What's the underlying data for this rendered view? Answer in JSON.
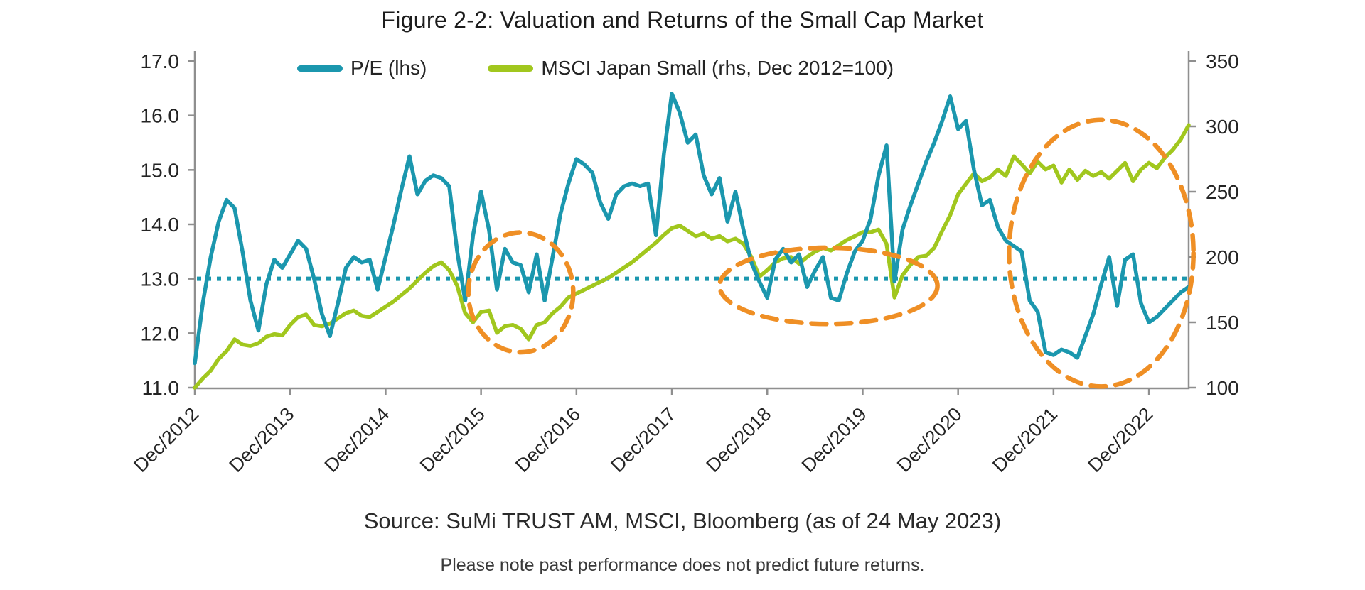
{
  "title": "Figure 2-2: Valuation and Returns of the Small Cap Market",
  "legend": {
    "items": [
      {
        "label": "P/E (lhs)",
        "color": "#1B97AE"
      },
      {
        "label": "MSCI Japan Small (rhs, Dec 2012=100)",
        "color": "#A1C71E"
      }
    ]
  },
  "source_line": "Source: SuMi TRUST AM, MSCI, Bloomberg (as of 24 May 2023)",
  "footnote": "Please note past performance does not predict future returns.",
  "chart_data": {
    "type": "line",
    "title": "Figure 2-2: Valuation and Returns of the Small Cap Market",
    "x_unit": "month",
    "x_start": "Dec 2012",
    "x_end": "May 2023",
    "x_tick_labels": [
      "Dec/2012",
      "Dec/2013",
      "Dec/2014",
      "Dec/2015",
      "Dec/2016",
      "Dec/2017",
      "Dec/2018",
      "Dec/2019",
      "Dec/2020",
      "Dec/2021",
      "Dec/2022"
    ],
    "gridlines": false,
    "legend_position": "top",
    "left_axis": {
      "name": "P/E",
      "range": [
        11.0,
        17.0
      ],
      "tick_labels": [
        "11.0",
        "12.0",
        "13.0",
        "14.0",
        "15.0",
        "16.0",
        "17.0"
      ]
    },
    "right_axis": {
      "name": "MSCI Japan Small (Dec 2012=100)",
      "range": [
        100,
        350
      ],
      "tick_labels": [
        "100",
        "150",
        "200",
        "250",
        "300",
        "350"
      ]
    },
    "reference_line": {
      "axis": "left",
      "value": 13.0,
      "style": "dotted",
      "color": "#1B97AE"
    },
    "series": [
      {
        "name": "P/E (lhs)",
        "axis": "left",
        "color": "#1B97AE",
        "values": [
          11.45,
          12.55,
          13.4,
          14.05,
          14.45,
          14.3,
          13.5,
          12.6,
          12.05,
          12.9,
          13.35,
          13.2,
          13.45,
          13.7,
          13.55,
          13.0,
          12.35,
          11.95,
          12.55,
          13.2,
          13.4,
          13.3,
          13.35,
          12.8,
          13.4,
          14.0,
          14.65,
          15.25,
          14.55,
          14.8,
          14.9,
          14.85,
          14.7,
          13.5,
          12.6,
          13.8,
          14.6,
          13.9,
          12.8,
          13.55,
          13.3,
          13.25,
          12.75,
          13.45,
          12.6,
          13.4,
          14.2,
          14.75,
          15.2,
          15.1,
          14.95,
          14.4,
          14.1,
          14.55,
          14.7,
          14.75,
          14.7,
          14.75,
          13.8,
          15.3,
          16.4,
          16.05,
          15.5,
          15.65,
          14.9,
          14.55,
          14.85,
          14.05,
          14.6,
          13.9,
          13.3,
          12.95,
          12.65,
          13.35,
          13.55,
          13.3,
          13.45,
          12.85,
          13.15,
          13.4,
          12.65,
          12.6,
          13.1,
          13.5,
          13.7,
          14.1,
          14.9,
          15.45,
          12.95,
          13.9,
          14.35,
          14.75,
          15.15,
          15.5,
          15.9,
          16.35,
          15.75,
          15.9,
          15.0,
          14.35,
          14.45,
          13.95,
          13.7,
          13.6,
          13.5,
          12.6,
          12.4,
          11.65,
          11.6,
          11.7,
          11.65,
          11.55,
          11.95,
          12.35,
          12.9,
          13.4,
          12.5,
          13.35,
          13.45,
          12.55,
          12.2,
          12.3,
          12.45,
          12.6,
          12.75,
          12.85
        ]
      },
      {
        "name": "MSCI Japan Small (rhs, Dec 2012=100)",
        "axis": "right",
        "color": "#A1C71E",
        "values": [
          100,
          107,
          113,
          122,
          128,
          137,
          133,
          132,
          134,
          139,
          141,
          140,
          148,
          154,
          156,
          148,
          147,
          149,
          153,
          157,
          159,
          155,
          154,
          158,
          162,
          166,
          171,
          176,
          182,
          188,
          193,
          196,
          190,
          178,
          157,
          150,
          158,
          159,
          142,
          147,
          148,
          145,
          137,
          148,
          150,
          157,
          162,
          169,
          172,
          175,
          178,
          181,
          184,
          188,
          192,
          196,
          201,
          206,
          211,
          217,
          222,
          224,
          220,
          216,
          218,
          214,
          216,
          212,
          214,
          210,
          200,
          185,
          190,
          196,
          199,
          200,
          195,
          200,
          204,
          207,
          205,
          209,
          213,
          216,
          219,
          219,
          221,
          210,
          169,
          186,
          194,
          200,
          201,
          207,
          220,
          232,
          248,
          256,
          264,
          258,
          261,
          267,
          262,
          277,
          271,
          264,
          273,
          267,
          270,
          257,
          267,
          259,
          266,
          262,
          265,
          260,
          266,
          272,
          258,
          267,
          272,
          268,
          276,
          282,
          290,
          301
        ]
      }
    ],
    "annotations": [
      {
        "shape": "dashed-ellipse",
        "color": "#EF8F25",
        "axis": "left",
        "center_month": 41.0,
        "center_value": 12.75,
        "radius_months": 6.6,
        "radius_value": 1.1
      },
      {
        "shape": "dashed-ellipse",
        "color": "#EF8F25",
        "axis": "left",
        "center_month": 79.7,
        "center_value": 12.87,
        "radius_months": 13.7,
        "radius_value": 0.7
      },
      {
        "shape": "dashed-ellipse",
        "color": "#EF8F25",
        "axis": "left",
        "center_month": 114.0,
        "center_value": 13.47,
        "radius_months": 11.6,
        "radius_value": 2.45
      }
    ]
  }
}
